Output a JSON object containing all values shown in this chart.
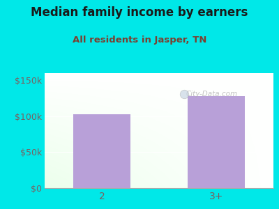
{
  "title": "Median family income by earners",
  "subtitle": "All residents in Jasper, TN",
  "categories": [
    "2",
    "3+"
  ],
  "values": [
    103000,
    128000
  ],
  "bar_color": "#b8a0d8",
  "background_color": "#00e8e8",
  "title_color": "#1a1a1a",
  "subtitle_color": "#7a4030",
  "tick_color": "#7a6060",
  "ytick_values": [
    0,
    50000,
    100000,
    150000
  ],
  "ylim": [
    0,
    160000
  ],
  "title_fontsize": 12,
  "subtitle_fontsize": 9.5,
  "watermark": "City-Data.com"
}
